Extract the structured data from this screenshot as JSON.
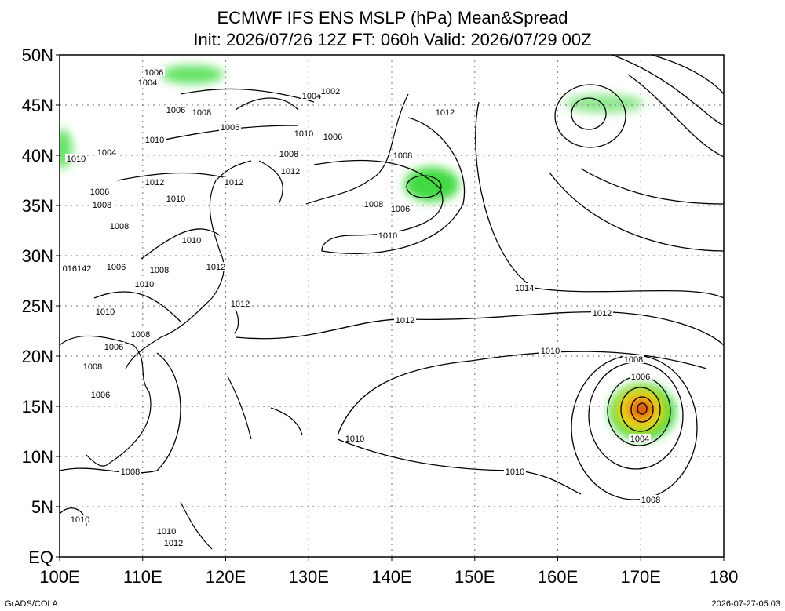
{
  "title": [
    "ECMWF IFS ENS MSLP (hPa) Mean&Spread",
    "Init: 2026/07/26 12Z  FT: 060h  Valid: 2026/07/29 00Z"
  ],
  "x_axis_labels": [
    "100E",
    "110E",
    "120E",
    "130E",
    "140E",
    "150E",
    "160E",
    "170E",
    "180"
  ],
  "y_axis_labels": [
    "50N",
    "45N",
    "40N",
    "35N",
    "30N",
    "25N",
    "20N",
    "15N",
    "10N",
    "5N",
    "EQ"
  ],
  "contour_labels": [
    "1006",
    "1004",
    "1004",
    "1002",
    "1012",
    "1006",
    "1008",
    "1006",
    "1010",
    "1006",
    "1010",
    "1004",
    "1008",
    "1008",
    "1010",
    "1012",
    "1012",
    "1012",
    "1006",
    "1010",
    "1008",
    "1008",
    "1006",
    "1008",
    "1010",
    "1010",
    "1006",
    "1012",
    "1008",
    "016142",
    "1010",
    "1014",
    "1012",
    "1010",
    "1012",
    "1012",
    "1008",
    "1006",
    "1010",
    "1008",
    "1008",
    "1006",
    "1006",
    "1004",
    "1010",
    "1008",
    "1010",
    "1008",
    "1010",
    "1010",
    "1012"
  ],
  "footer": {
    "left": "GrADS/COLA",
    "right": "2026-07-27-05:03"
  }
}
